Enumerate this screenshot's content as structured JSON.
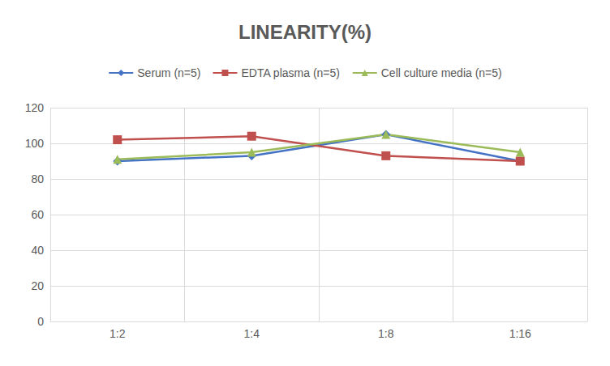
{
  "chart_data": {
    "type": "line",
    "title": "LINEARITY(%)",
    "categories": [
      "1:2",
      "1:4",
      "1:8",
      "1:16"
    ],
    "series": [
      {
        "name": "Serum (n=5)",
        "color": "#4472c4",
        "marker": "diamond",
        "values": [
          90,
          93,
          105,
          90
        ]
      },
      {
        "name": "EDTA plasma (n=5)",
        "color": "#c0504d",
        "marker": "square",
        "values": [
          102,
          104,
          93,
          90
        ]
      },
      {
        "name": "Cell culture media (n=5)",
        "color": "#9bbb59",
        "marker": "triangle",
        "values": [
          91,
          95,
          105,
          95
        ]
      }
    ],
    "ylim": [
      0,
      120
    ],
    "yticks": [
      0,
      20,
      40,
      60,
      80,
      100,
      120
    ],
    "grid": true,
    "legend": "top"
  }
}
